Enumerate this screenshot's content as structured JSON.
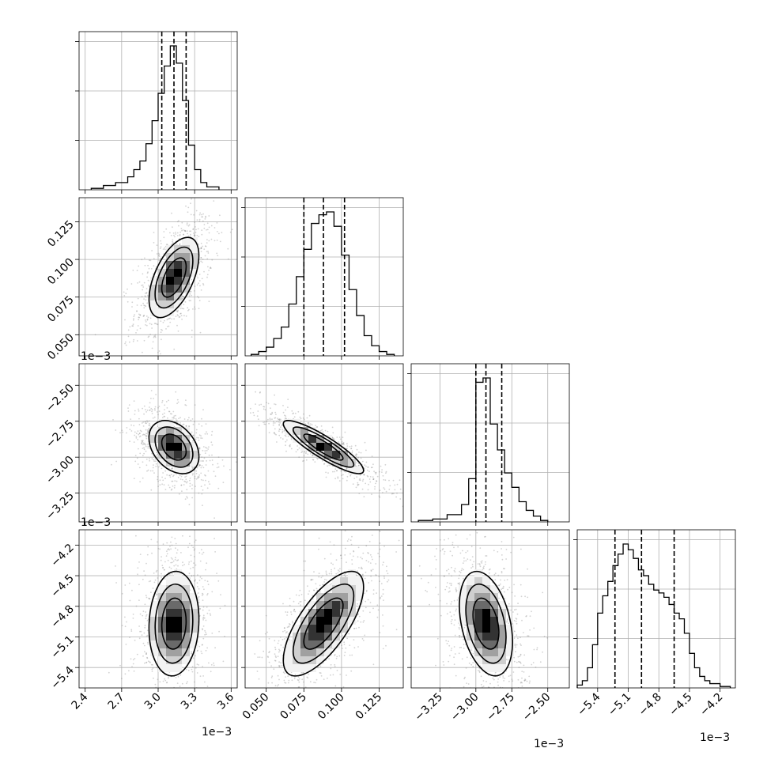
{
  "chart_data": {
    "type": "corner",
    "parameters": 4,
    "colors": {
      "hist_line": "#000000",
      "grid": "#b0b0b0",
      "quantile_line": "#000000",
      "sample_points": "#808080"
    },
    "grid": true,
    "quantile_line_style": "dashed",
    "axes": [
      {
        "range": [
          2.35,
          3.65
        ],
        "ticks": [
          2.4,
          2.7,
          3.0,
          3.3,
          3.6
        ],
        "tick_labels": [
          "2.4",
          "2.7",
          "3.0",
          "3.3",
          "3.6"
        ],
        "offset": "1e−3"
      },
      {
        "range": [
          0.036,
          0.141
        ],
        "ticks": [
          0.05,
          0.075,
          0.1,
          0.125
        ],
        "tick_labels": [
          "0.050",
          "0.075",
          "0.100",
          "0.125"
        ],
        "offset": "1e−3"
      },
      {
        "range": [
          -3.45,
          -2.35
        ],
        "ticks": [
          -3.25,
          -3.0,
          -2.75,
          -2.5
        ],
        "tick_labels": [
          "−3.25",
          "−3.00",
          "−2.75",
          "−2.50"
        ],
        "offset": "1e−3"
      },
      {
        "range": [
          -5.6,
          -4.05
        ],
        "ticks": [
          -5.4,
          -5.1,
          -4.8,
          -4.5,
          -4.2
        ],
        "tick_labels": [
          "−5.4",
          "−5.1",
          "−4.8",
          "−4.5",
          "−4.2"
        ],
        "offset": "1e−3"
      }
    ],
    "marginals": [
      {
        "quantiles": [
          3.03,
          3.13,
          3.23
        ],
        "bins": [
          {
            "x0": 2.45,
            "x1": 2.55,
            "n": 1
          },
          {
            "x0": 2.55,
            "x1": 2.65,
            "n": 3
          },
          {
            "x0": 2.65,
            "x1": 2.75,
            "n": 5
          },
          {
            "x0": 2.75,
            "x1": 2.8,
            "n": 9
          },
          {
            "x0": 2.8,
            "x1": 2.85,
            "n": 14
          },
          {
            "x0": 2.85,
            "x1": 2.9,
            "n": 20
          },
          {
            "x0": 2.9,
            "x1": 2.95,
            "n": 32
          },
          {
            "x0": 2.95,
            "x1": 3.0,
            "n": 48
          },
          {
            "x0": 3.0,
            "x1": 3.05,
            "n": 67
          },
          {
            "x0": 3.05,
            "x1": 3.1,
            "n": 86
          },
          {
            "x0": 3.1,
            "x1": 3.15,
            "n": 100
          },
          {
            "x0": 3.15,
            "x1": 3.2,
            "n": 88
          },
          {
            "x0": 3.2,
            "x1": 3.25,
            "n": 62
          },
          {
            "x0": 3.25,
            "x1": 3.3,
            "n": 31
          },
          {
            "x0": 3.3,
            "x1": 3.35,
            "n": 14
          },
          {
            "x0": 3.35,
            "x1": 3.4,
            "n": 5
          },
          {
            "x0": 3.4,
            "x1": 3.5,
            "n": 2
          }
        ]
      },
      {
        "quantiles": [
          0.075,
          0.088,
          0.102
        ],
        "bins": [
          {
            "x0": 0.04,
            "x1": 0.045,
            "n": 1
          },
          {
            "x0": 0.045,
            "x1": 0.05,
            "n": 3
          },
          {
            "x0": 0.05,
            "x1": 0.055,
            "n": 6
          },
          {
            "x0": 0.055,
            "x1": 0.06,
            "n": 12
          },
          {
            "x0": 0.06,
            "x1": 0.065,
            "n": 20
          },
          {
            "x0": 0.065,
            "x1": 0.07,
            "n": 36
          },
          {
            "x0": 0.07,
            "x1": 0.075,
            "n": 55
          },
          {
            "x0": 0.075,
            "x1": 0.08,
            "n": 74
          },
          {
            "x0": 0.08,
            "x1": 0.085,
            "n": 92
          },
          {
            "x0": 0.085,
            "x1": 0.09,
            "n": 98
          },
          {
            "x0": 0.09,
            "x1": 0.095,
            "n": 100
          },
          {
            "x0": 0.095,
            "x1": 0.1,
            "n": 90
          },
          {
            "x0": 0.1,
            "x1": 0.105,
            "n": 70
          },
          {
            "x0": 0.105,
            "x1": 0.11,
            "n": 46
          },
          {
            "x0": 0.11,
            "x1": 0.115,
            "n": 28
          },
          {
            "x0": 0.115,
            "x1": 0.12,
            "n": 14
          },
          {
            "x0": 0.12,
            "x1": 0.125,
            "n": 7
          },
          {
            "x0": 0.125,
            "x1": 0.13,
            "n": 3
          },
          {
            "x0": 0.13,
            "x1": 0.135,
            "n": 1
          }
        ]
      },
      {
        "quantiles": [
          -3.0,
          -2.93,
          -2.82
        ],
        "bins": [
          {
            "x0": -3.4,
            "x1": -3.3,
            "n": 1
          },
          {
            "x0": -3.3,
            "x1": -3.2,
            "n": 2
          },
          {
            "x0": -3.2,
            "x1": -3.1,
            "n": 5
          },
          {
            "x0": -3.1,
            "x1": -3.05,
            "n": 12
          },
          {
            "x0": -3.05,
            "x1": -3.0,
            "n": 30
          },
          {
            "x0": -3.0,
            "x1": -2.95,
            "n": 97
          },
          {
            "x0": -2.95,
            "x1": -2.9,
            "n": 100
          },
          {
            "x0": -2.9,
            "x1": -2.85,
            "n": 68
          },
          {
            "x0": -2.85,
            "x1": -2.8,
            "n": 50
          },
          {
            "x0": -2.8,
            "x1": -2.75,
            "n": 34
          },
          {
            "x0": -2.75,
            "x1": -2.7,
            "n": 24
          },
          {
            "x0": -2.7,
            "x1": -2.65,
            "n": 14
          },
          {
            "x0": -2.65,
            "x1": -2.6,
            "n": 8
          },
          {
            "x0": -2.6,
            "x1": -2.55,
            "n": 4
          },
          {
            "x0": -2.55,
            "x1": -2.5,
            "n": 1
          }
        ]
      },
      {
        "quantiles": [
          -5.23,
          -4.97,
          -4.65
        ],
        "bins": [
          {
            "x0": -5.6,
            "x1": -5.55,
            "n": 2
          },
          {
            "x0": -5.55,
            "x1": -5.5,
            "n": 5
          },
          {
            "x0": -5.5,
            "x1": -5.45,
            "n": 14
          },
          {
            "x0": -5.45,
            "x1": -5.4,
            "n": 30
          },
          {
            "x0": -5.4,
            "x1": -5.35,
            "n": 52
          },
          {
            "x0": -5.35,
            "x1": -5.3,
            "n": 64
          },
          {
            "x0": -5.3,
            "x1": -5.25,
            "n": 74
          },
          {
            "x0": -5.25,
            "x1": -5.2,
            "n": 85
          },
          {
            "x0": -5.2,
            "x1": -5.15,
            "n": 93
          },
          {
            "x0": -5.15,
            "x1": -5.1,
            "n": 100
          },
          {
            "x0": -5.1,
            "x1": -5.05,
            "n": 96
          },
          {
            "x0": -5.05,
            "x1": -5.0,
            "n": 90
          },
          {
            "x0": -5.0,
            "x1": -4.95,
            "n": 82
          },
          {
            "x0": -4.95,
            "x1": -4.9,
            "n": 78
          },
          {
            "x0": -4.9,
            "x1": -4.85,
            "n": 72
          },
          {
            "x0": -4.85,
            "x1": -4.8,
            "n": 68
          },
          {
            "x0": -4.8,
            "x1": -4.75,
            "n": 66
          },
          {
            "x0": -4.75,
            "x1": -4.7,
            "n": 63
          },
          {
            "x0": -4.7,
            "x1": -4.65,
            "n": 58
          },
          {
            "x0": -4.65,
            "x1": -4.6,
            "n": 52
          },
          {
            "x0": -4.6,
            "x1": -4.55,
            "n": 48
          },
          {
            "x0": -4.55,
            "x1": -4.5,
            "n": 38
          },
          {
            "x0": -4.5,
            "x1": -4.45,
            "n": 24
          },
          {
            "x0": -4.45,
            "x1": -4.4,
            "n": 14
          },
          {
            "x0": -4.4,
            "x1": -4.35,
            "n": 8
          },
          {
            "x0": -4.35,
            "x1": -4.3,
            "n": 5
          },
          {
            "x0": -4.3,
            "x1": -4.2,
            "n": 3
          },
          {
            "x0": -4.2,
            "x1": -4.1,
            "n": 1
          }
        ]
      }
    ],
    "pairs": [
      {
        "col": 0,
        "row": 1,
        "center": [
          3.13,
          0.088
        ],
        "sigma": [
          0.1,
          0.013
        ],
        "corr": 0.55
      },
      {
        "col": 0,
        "row": 2,
        "center": [
          3.13,
          -2.93
        ],
        "sigma": [
          0.1,
          0.09
        ],
        "corr": -0.35
      },
      {
        "col": 1,
        "row": 2,
        "center": [
          0.088,
          -2.93
        ],
        "sigma": [
          0.013,
          0.09
        ],
        "corr": -0.88
      },
      {
        "col": 0,
        "row": 3,
        "center": [
          3.13,
          -4.97
        ],
        "sigma": [
          0.1,
          0.25
        ],
        "corr": 0.08
      },
      {
        "col": 1,
        "row": 3,
        "center": [
          0.088,
          -4.97
        ],
        "sigma": [
          0.013,
          0.25
        ],
        "corr": 0.7
      },
      {
        "col": 2,
        "row": 3,
        "center": [
          -2.93,
          -4.97
        ],
        "sigma": [
          0.09,
          0.25
        ],
        "corr": -0.35
      }
    ]
  }
}
